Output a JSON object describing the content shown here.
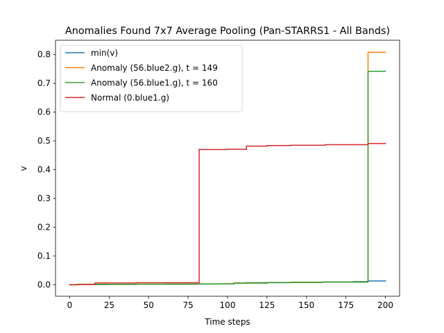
{
  "chart_data": {
    "type": "line",
    "title": "Anomalies Found 7x7 Average Pooling (Pan-STARRS1 - All Bands)",
    "xlabel": "Time steps",
    "ylabel": "v",
    "xlim": [
      -9,
      209
    ],
    "ylim": [
      -0.04,
      0.85
    ],
    "xticks": [
      0,
      25,
      50,
      75,
      100,
      125,
      150,
      175,
      200
    ],
    "yticks": [
      0.0,
      0.1,
      0.2,
      0.3,
      0.4,
      0.5,
      0.6,
      0.7,
      0.8
    ],
    "legend_position": "top-left",
    "grid": false,
    "series": [
      {
        "name": "min(v)",
        "color": "#1f77b4",
        "step": true,
        "x": [
          0,
          5,
          15,
          25,
          42,
          60,
          80,
          95,
          104,
          112,
          125,
          140,
          160,
          180,
          189,
          200
        ],
        "y": [
          0.0,
          0.0005,
          0.0008,
          0.0012,
          0.0015,
          0.002,
          0.0025,
          0.003,
          0.006,
          0.007,
          0.0078,
          0.0088,
          0.0095,
          0.011,
          0.013,
          0.014
        ]
      },
      {
        "name": "Anomaly (56.blue2.g), t = 149",
        "color": "#ff7f0e",
        "step": true,
        "x": [
          0,
          5,
          15,
          42,
          60,
          82,
          104,
          125,
          140,
          160,
          189,
          200
        ],
        "y": [
          0.0,
          0.001,
          0.0015,
          0.002,
          0.0025,
          0.003,
          0.006,
          0.0075,
          0.0085,
          0.0095,
          0.808,
          0.808
        ]
      },
      {
        "name": "Anomaly (56.blue1.g), t = 160",
        "color": "#2ca02c",
        "step": true,
        "x": [
          0,
          5,
          15,
          42,
          60,
          82,
          104,
          125,
          140,
          160,
          189,
          200
        ],
        "y": [
          0.0,
          0.0008,
          0.0012,
          0.0018,
          0.0022,
          0.0028,
          0.0055,
          0.007,
          0.008,
          0.009,
          0.742,
          0.742
        ]
      },
      {
        "name": "Normal (0.blue1.g)",
        "color": "#d62728",
        "step": true,
        "x": [
          0,
          5,
          16,
          42,
          82,
          100,
          112,
          125,
          140,
          162,
          189,
          200
        ],
        "y": [
          0.0,
          0.001,
          0.006,
          0.007,
          0.47,
          0.471,
          0.482,
          0.484,
          0.485,
          0.487,
          0.491,
          0.491
        ]
      }
    ]
  }
}
